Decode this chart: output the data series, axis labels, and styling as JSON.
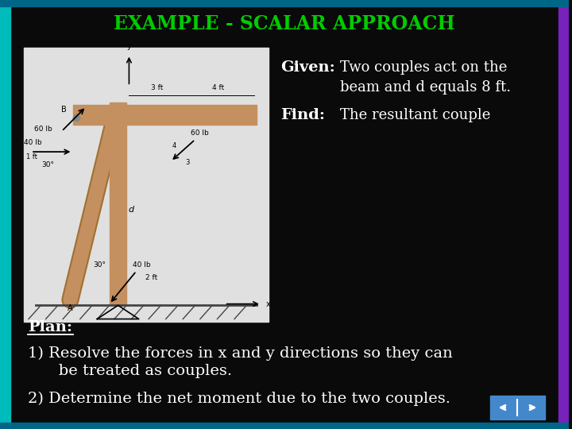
{
  "title": "EXAMPLE - SCALAR APPROACH",
  "title_color": "#00CC00",
  "title_fontsize": 17,
  "background_color": "#0a0a0a",
  "text_color": "#FFFFFF",
  "given_label": "Given:",
  "given_text1": "Two couples act on the",
  "given_text2": "beam and d equals 8 ft.",
  "find_label": "Find:",
  "find_text": "The resultant couple",
  "plan_label": "Plan:",
  "step1a": "1) Resolve the forces in x and y directions so they can",
  "step1b": "   be treated as couples.",
  "step2": "2) Determine the net moment due to the two couples.",
  "body_fontsize": 14,
  "label_fontsize": 14,
  "nav_color": "#4488CC",
  "image_placeholder_color": "#E0E0E0",
  "left_border_color": "#00BBBB",
  "right_border_color": "#7722BB",
  "bottom_border_color": "#006688"
}
